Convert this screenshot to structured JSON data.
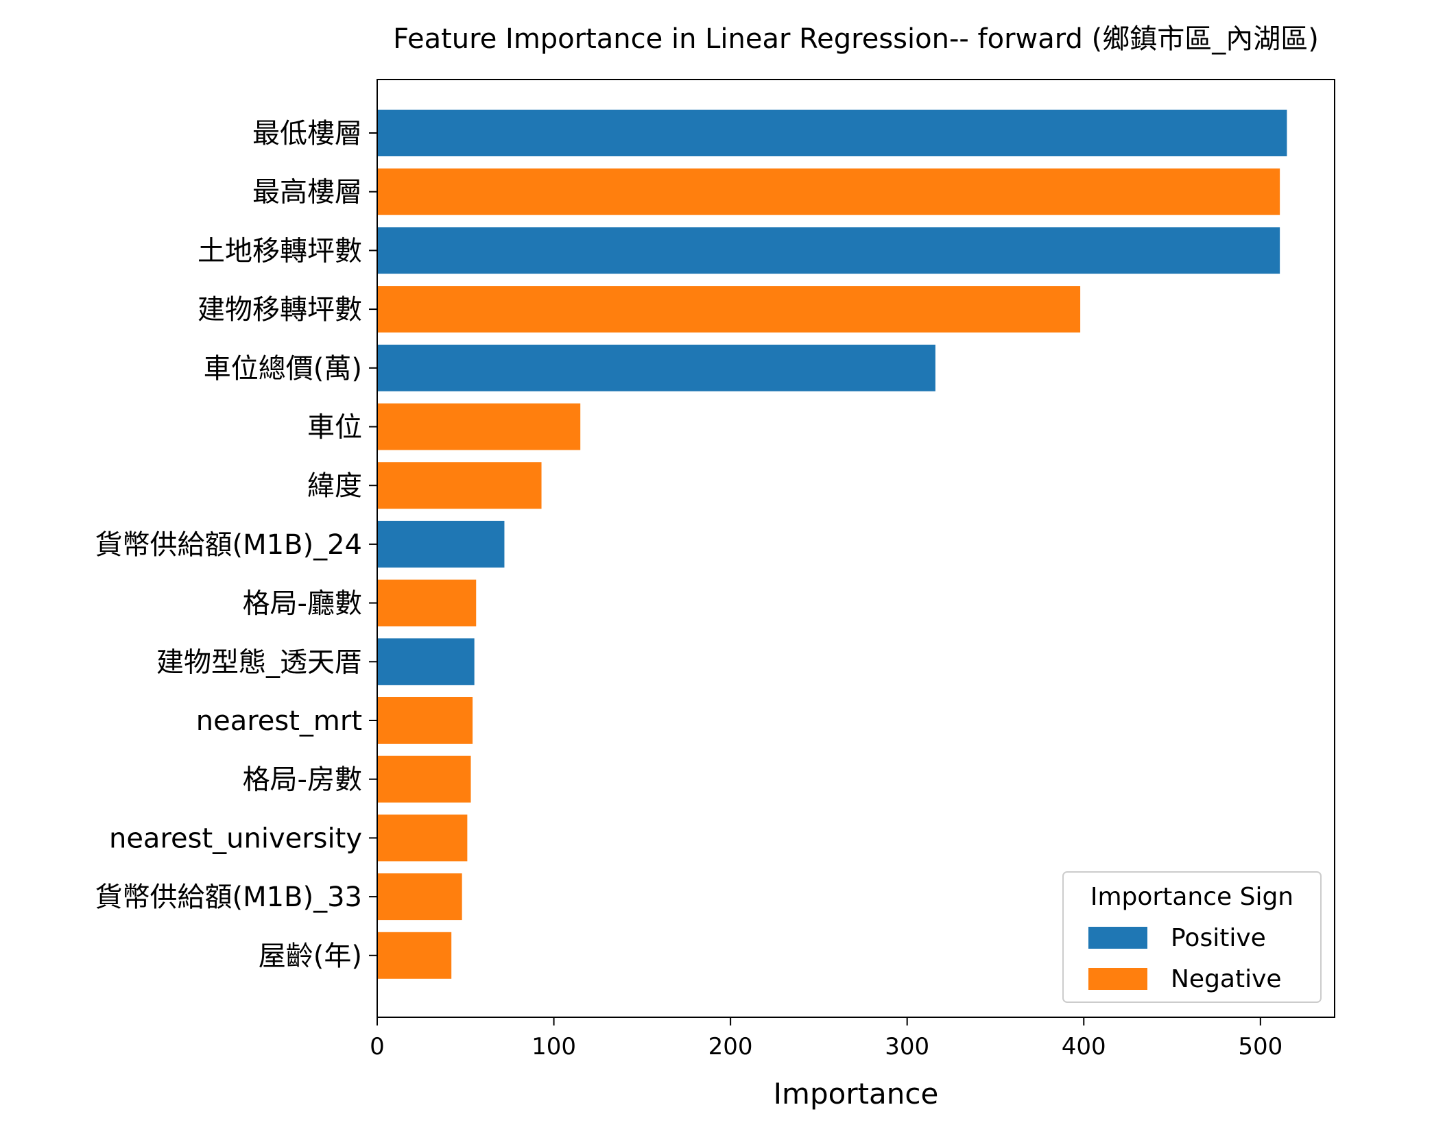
{
  "chart_data": {
    "type": "bar",
    "orientation": "horizontal",
    "title": "Feature Importance in Linear Regression-- forward (鄉鎮市區_內湖區)",
    "xlabel": "Importance",
    "ylabel": "",
    "xlim": [
      0,
      542
    ],
    "xticks": [
      "0",
      "100",
      "200",
      "300",
      "400",
      "500"
    ],
    "grid": false,
    "legend": {
      "title": "Importance Sign",
      "placement": "bottom-right",
      "entries": [
        {
          "label": "Positive",
          "color": "#1f77b4"
        },
        {
          "label": "Negative",
          "color": "#ff7f0e"
        }
      ]
    },
    "colors": {
      "positive": "#1f77b4",
      "negative": "#ff7f0e"
    },
    "bars": [
      {
        "category": "最低樓層",
        "value": 515,
        "sign": "positive"
      },
      {
        "category": "最高樓層",
        "value": 511,
        "sign": "negative"
      },
      {
        "category": "土地移轉坪數",
        "value": 511,
        "sign": "positive"
      },
      {
        "category": "建物移轉坪數",
        "value": 398,
        "sign": "negative"
      },
      {
        "category": "車位總價(萬)",
        "value": 316,
        "sign": "positive"
      },
      {
        "category": "車位",
        "value": 115,
        "sign": "negative"
      },
      {
        "category": "緯度",
        "value": 93,
        "sign": "negative"
      },
      {
        "category": "貨幣供給額(M1B)_24",
        "value": 72,
        "sign": "positive"
      },
      {
        "category": "格局-廳數",
        "value": 56,
        "sign": "negative"
      },
      {
        "category": "建物型態_透天厝",
        "value": 55,
        "sign": "positive"
      },
      {
        "category": "nearest_mrt",
        "value": 54,
        "sign": "negative"
      },
      {
        "category": "格局-房數",
        "value": 53,
        "sign": "negative"
      },
      {
        "category": "nearest_university",
        "value": 51,
        "sign": "negative"
      },
      {
        "category": "貨幣供給額(M1B)_33",
        "value": 48,
        "sign": "negative"
      },
      {
        "category": "屋齡(年)",
        "value": 42,
        "sign": "negative"
      }
    ]
  }
}
